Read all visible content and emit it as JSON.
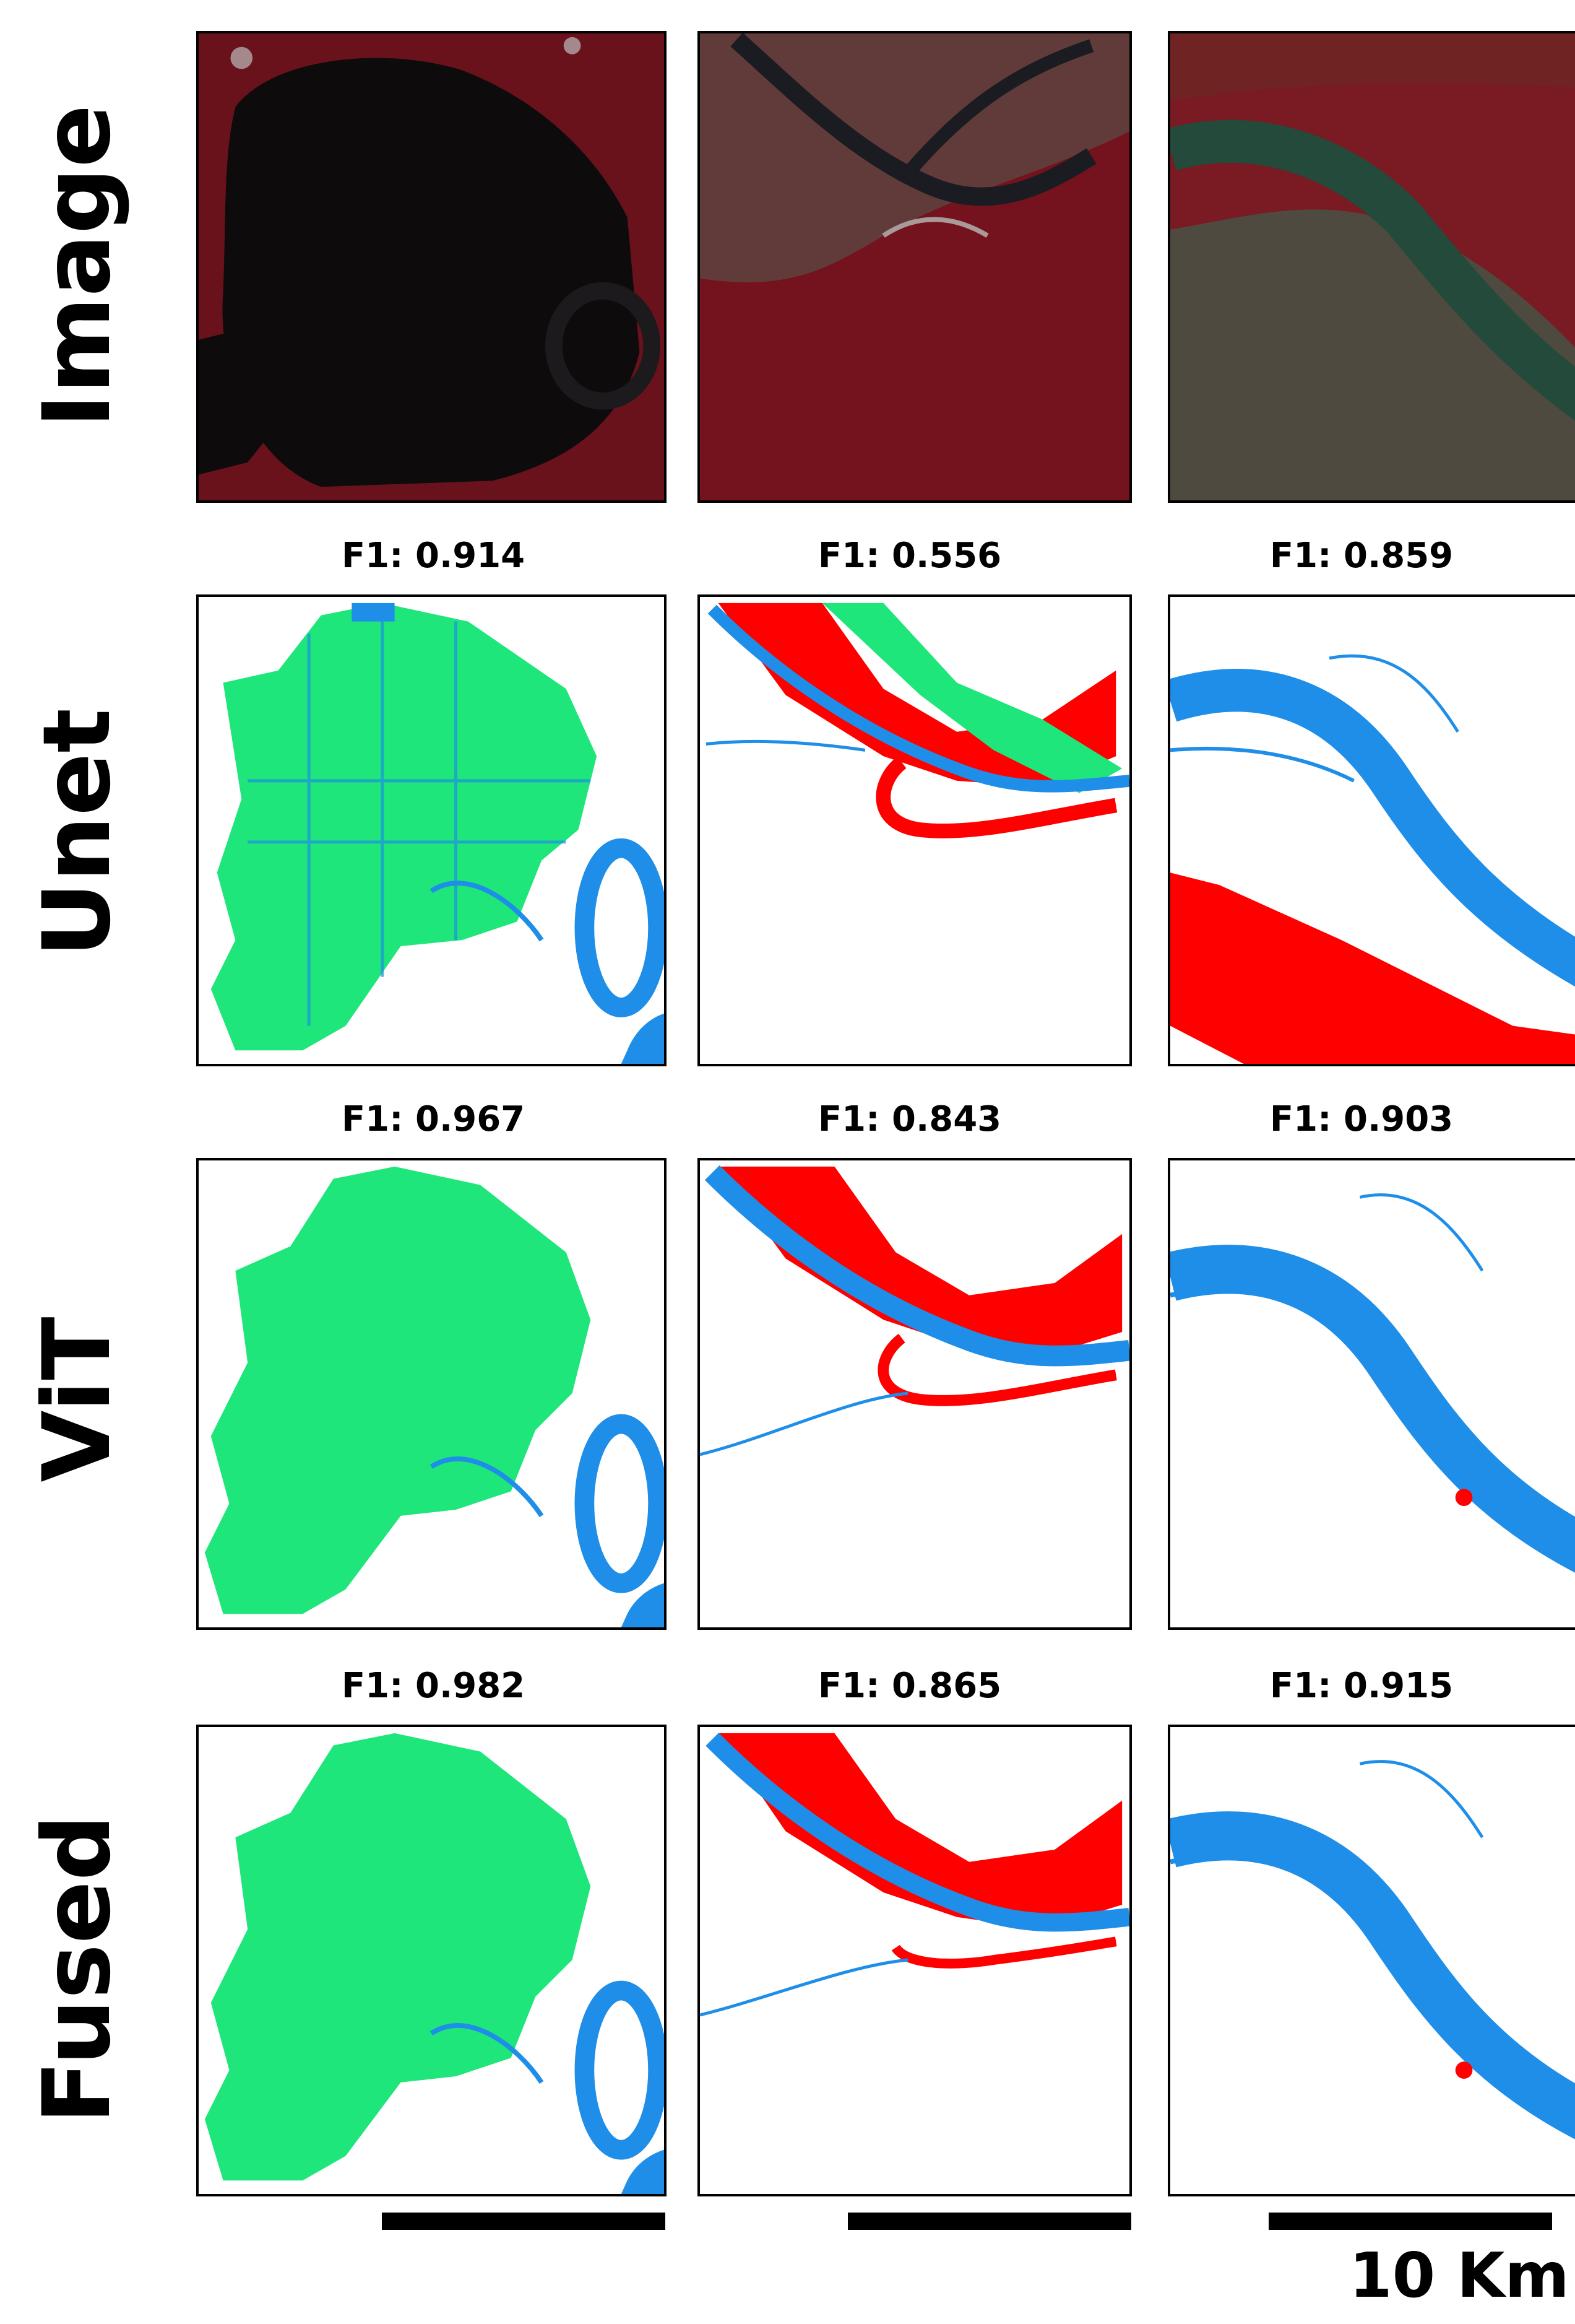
{
  "rows": [
    {
      "label": "Image"
    },
    {
      "label": "Unet",
      "scores": [
        "F1: 0.914",
        "F1: 0.556",
        "F1: 0.859"
      ]
    },
    {
      "label": "ViT",
      "scores": [
        "F1: 0.967",
        "F1: 0.843",
        "F1: 0.903"
      ]
    },
    {
      "label": "Fused",
      "scores": [
        "F1: 0.982",
        "F1: 0.865",
        "F1: 0.915"
      ]
    }
  ],
  "scale": {
    "label": "10 Km"
  },
  "colors": {
    "class_green": "#1ee67a",
    "class_blue": "#1e8ee8",
    "class_red": "#ff0000",
    "satellite_dark": "#0e0b0c",
    "satellite_red": "#7a1520"
  }
}
